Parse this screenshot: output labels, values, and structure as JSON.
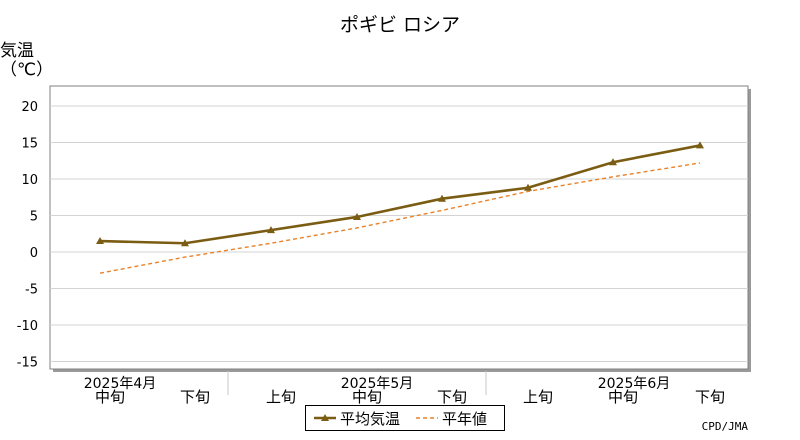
{
  "chart_data": {
    "type": "line",
    "title": "ポギビ ロシア",
    "ylabel": "気温\n（℃）",
    "ylim": [
      -15,
      20
    ],
    "yticks": [
      "20",
      "15",
      "10",
      "5",
      "0",
      "-5",
      "-10",
      "-15"
    ],
    "grid": true,
    "x_top": [
      "2025年4月",
      "2025年5月",
      "2025年6月"
    ],
    "x": [
      "中旬",
      "下旬",
      "上旬",
      "中旬",
      "下旬",
      "上旬",
      "中旬",
      "下旬"
    ],
    "series": [
      {
        "name": "平均気温",
        "color": "#7a5c12",
        "style": "solid-triangle",
        "values": [
          1.5,
          1.2,
          3.0,
          4.8,
          7.3,
          8.8,
          12.3,
          14.6
        ]
      },
      {
        "name": "平年値",
        "color": "#e8822a",
        "style": "dashed",
        "values": [
          -2.9,
          -0.7,
          1.2,
          3.3,
          5.7,
          8.3,
          10.3,
          12.2
        ]
      }
    ],
    "legend": "bottom-center",
    "credit": "CPD/JMA"
  }
}
